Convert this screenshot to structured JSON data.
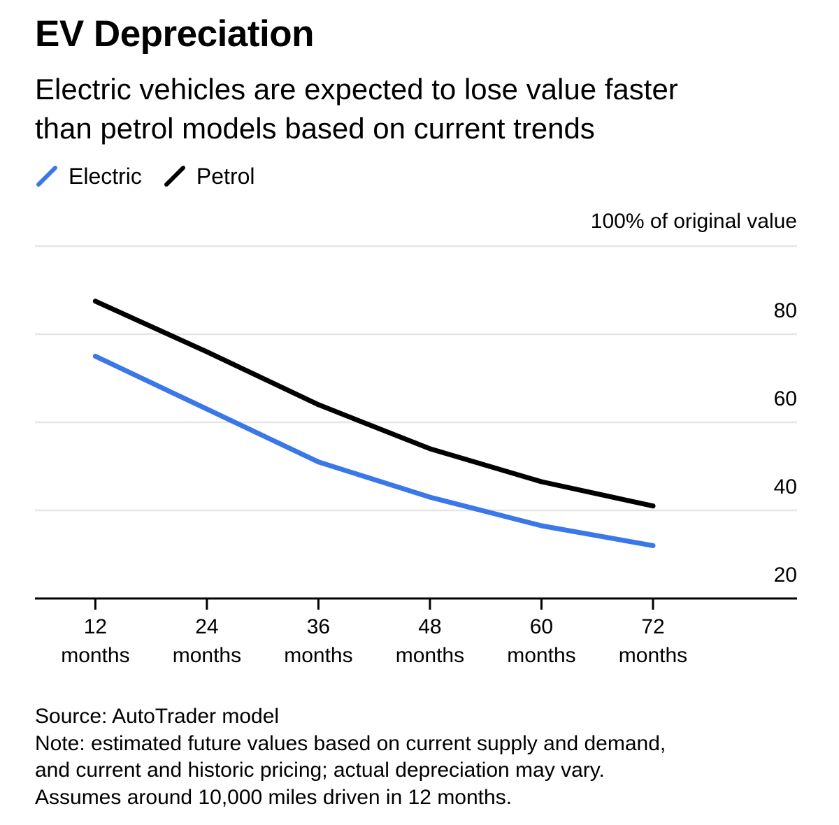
{
  "title": "EV Depreciation",
  "subtitle_line1": "Electric vehicles are expected to lose value faster",
  "subtitle_line2": "than petrol models based on current trends",
  "chart_data": {
    "type": "line",
    "x": [
      12,
      24,
      36,
      48,
      60,
      72
    ],
    "categories": [
      [
        "12",
        "months"
      ],
      [
        "24",
        "months"
      ],
      [
        "36",
        "months"
      ],
      [
        "48",
        "months"
      ],
      [
        "60",
        "months"
      ],
      [
        "72",
        "months"
      ]
    ],
    "series": [
      {
        "name": "Electric",
        "color": "#3a77e9",
        "values": [
          75,
          63,
          51,
          43,
          36.5,
          32
        ]
      },
      {
        "name": "Petrol",
        "color": "#000000",
        "values": [
          87.5,
          76,
          64,
          54,
          46.5,
          41
        ]
      }
    ],
    "ylabel": "100% of original value",
    "yticks": [
      20,
      40,
      60,
      80
    ],
    "ylim": [
      20,
      100
    ],
    "xlim": [
      5.5,
      87.5
    ],
    "grid": true,
    "legend": "top-left"
  },
  "footer": {
    "source": "Source: AutoTrader model",
    "note_line1": "Note: estimated future values based on current supply and demand,",
    "note_line2": "and current and historic pricing; actual depreciation may vary.",
    "note_line3": "Assumes around 10,000 miles driven in 12 months."
  }
}
